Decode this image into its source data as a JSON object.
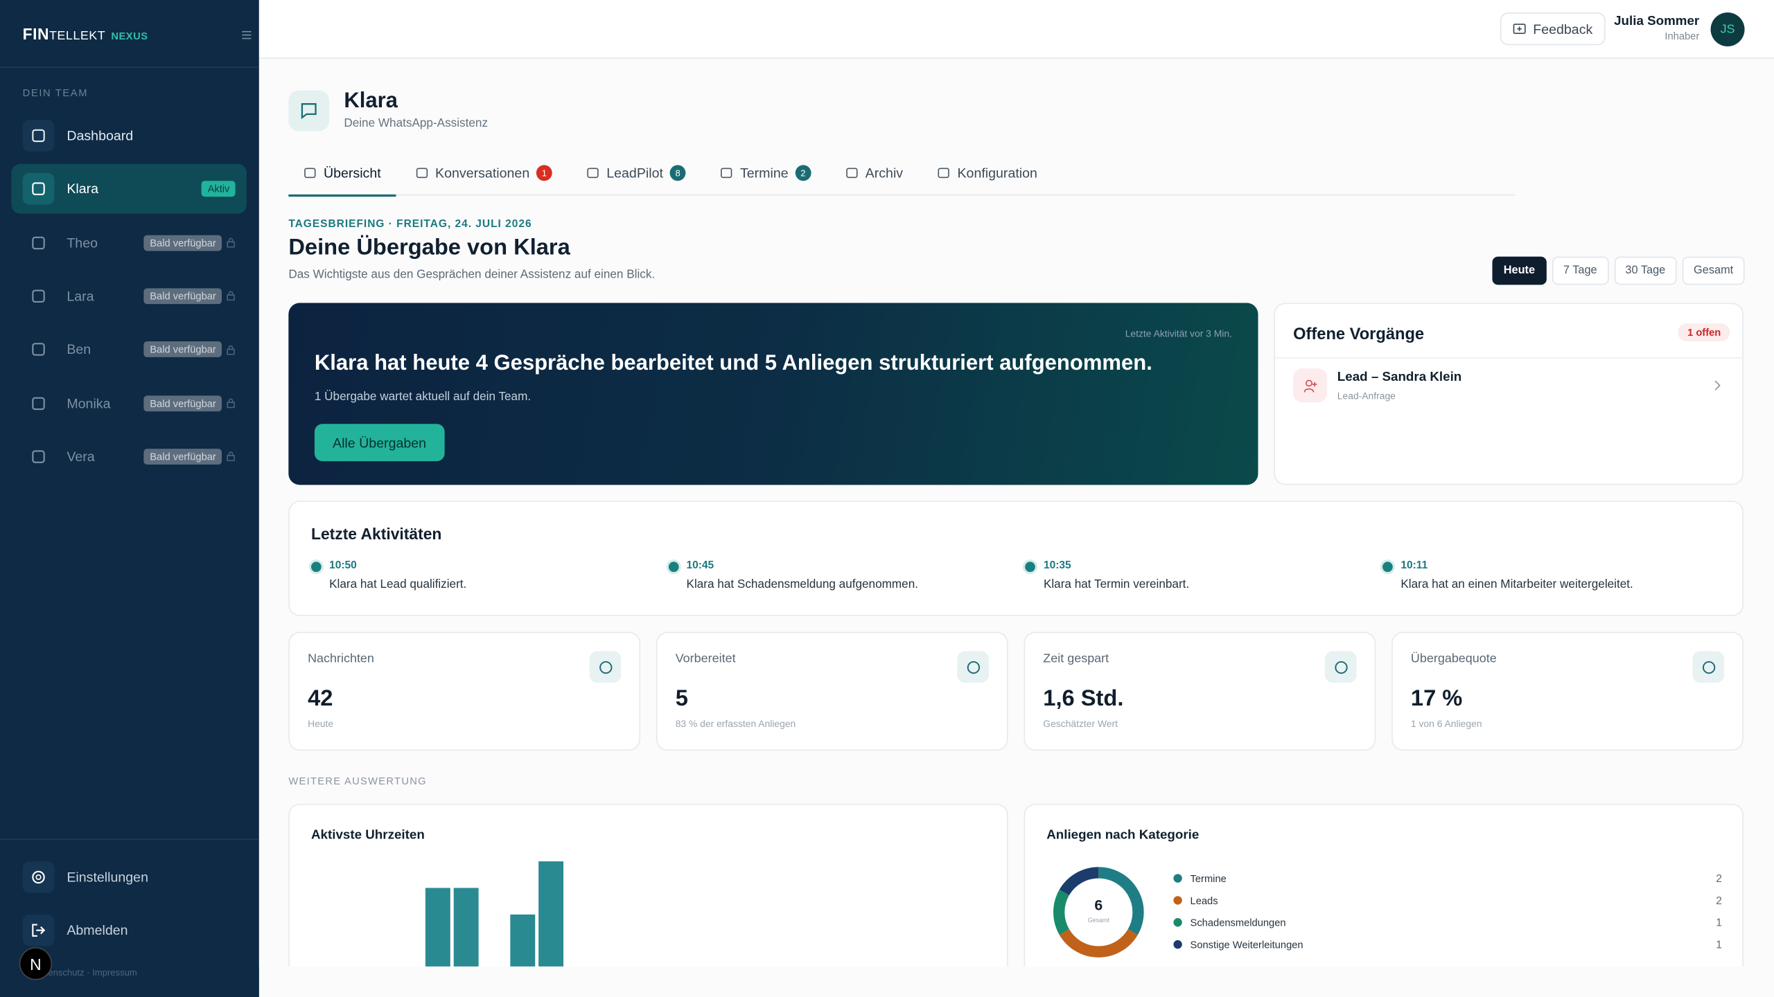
{
  "sidebar": {
    "brand_bold": "FIN",
    "brand_rest": "TELLEKT",
    "brand_tag": "NEXUS",
    "section": "DEIN TEAM",
    "items": [
      {
        "label": "Dashboard"
      },
      {
        "label": "Klara",
        "badge": "Aktiv"
      },
      {
        "label": "Theo",
        "badge": "Bald verfügbar"
      },
      {
        "label": "Lara",
        "badge": "Bald verfügbar"
      },
      {
        "label": "Ben",
        "badge": "Bald verfügbar"
      },
      {
        "label": "Monika",
        "badge": "Bald verfügbar"
      },
      {
        "label": "Vera",
        "badge": "Bald verfügbar"
      }
    ],
    "settings": "Einstellungen",
    "logout": "Abmelden",
    "footer_links": [
      "Datenschutz",
      "Impressum"
    ],
    "bubble": "N"
  },
  "topbar": {
    "feedback": "Feedback",
    "user_name": "Julia Sommer",
    "user_role": "Inhaber",
    "avatar": "JS"
  },
  "header": {
    "title": "Klara",
    "subtitle": "Deine WhatsApp-Assistenz"
  },
  "tabs": [
    {
      "label": "Übersicht"
    },
    {
      "label": "Konversationen",
      "count": 1
    },
    {
      "label": "LeadPilot",
      "count": 8
    },
    {
      "label": "Termine",
      "count": 2
    },
    {
      "label": "Archiv"
    },
    {
      "label": "Konfiguration"
    }
  ],
  "briefing": {
    "eyebrow": "TAGESBRIEFING · FREITAG, 24. JULI 2026",
    "title": "Deine Übergabe von Klara",
    "subtitle": "Das Wichtigste aus den Gesprächen deiner Assistenz auf einen Blick.",
    "ranges": [
      "Heute",
      "7 Tage",
      "30 Tage",
      "Gesamt"
    ]
  },
  "hero": {
    "activity": "Letzte Aktivität vor 3 Min.",
    "headline": "Klara hat heute 4 Gespräche bearbeitet und 5 Anliegen strukturiert aufgenommen.",
    "sub": "1 Übergabe wartet aktuell auf dein Team.",
    "button": "Alle Übergaben"
  },
  "open": {
    "title": "Offene Vorgänge",
    "badge": "1 offen",
    "items": [
      {
        "title": "Lead – Sandra Klein",
        "sub": "Lead-Anfrage"
      }
    ]
  },
  "activities": {
    "title": "Letzte Aktivitäten",
    "items": [
      {
        "time": "10:50",
        "text": "Klara hat Lead qualifiziert."
      },
      {
        "time": "10:45",
        "text": "Klara hat Schadensmeldung aufgenommen."
      },
      {
        "time": "10:35",
        "text": "Klara hat Termin vereinbart."
      },
      {
        "time": "10:11",
        "text": "Klara hat an einen Mitarbeiter weitergeleitet."
      }
    ]
  },
  "kpis": [
    {
      "label": "Nachrichten",
      "value": "42",
      "note": "Heute"
    },
    {
      "label": "Vorbereitet",
      "value": "5",
      "note": "83 % der erfassten Anliegen"
    },
    {
      "label": "Zeit gespart",
      "value": "1,6 Std.",
      "note": "Geschätzter Wert"
    },
    {
      "label": "Übergabequote",
      "value": "17 %",
      "note": "1 von 6 Anliegen"
    }
  ],
  "section": "WEITERE AUSWERTUNG",
  "hours": {
    "title": "Aktivste Uhrzeiten",
    "color": "#2a8a92",
    "values": [
      0,
      0,
      0,
      0,
      3,
      3,
      0,
      2,
      4,
      0,
      0,
      0,
      0,
      0,
      0,
      0,
      0,
      0,
      0,
      0,
      0,
      0,
      0,
      0
    ]
  },
  "categories": {
    "title": "Anliegen nach Kategorie",
    "total": 6,
    "total_label": "Gesamt",
    "items": [
      {
        "name": "Termine",
        "value": 2,
        "color": "#1f7d86"
      },
      {
        "name": "Leads",
        "value": 2,
        "color": "#c0621a"
      },
      {
        "name": "Schadensmeldungen",
        "value": 1,
        "color": "#1a8a6c"
      },
      {
        "name": "Sonstige Weiterleitungen",
        "value": 1,
        "color": "#1c3d6b"
      }
    ]
  }
}
